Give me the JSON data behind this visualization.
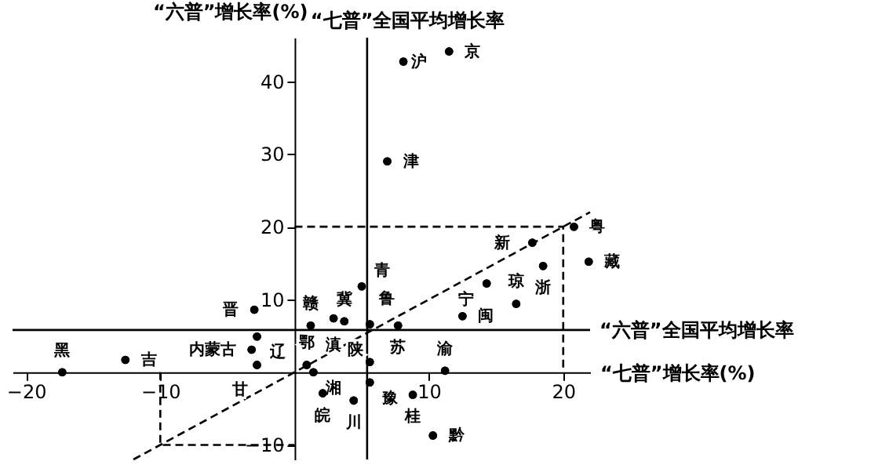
{
  "chart_data": {
    "type": "scatter",
    "xlabel": "“七普”增长率(%)",
    "ylabel": "“六普”增长率(%)",
    "xlim": [
      -21,
      22
    ],
    "ylim": [
      -12,
      46
    ],
    "xticks": [
      -20,
      -10,
      10,
      20
    ],
    "yticks": [
      -10,
      10,
      20,
      30,
      40
    ],
    "grid": false,
    "marker": "circle",
    "series": [
      {
        "color": "#000000",
        "x": [
          11.5,
          8.1,
          6.9,
          3.7,
          -3.0,
          -3.2,
          -2.8,
          -12.6,
          -17.3,
          7.7,
          18.5,
          2.1,
          12.5,
          1.2,
          5.6,
          5.6,
          0.9,
          1.4,
          20.8,
          8.8,
          16.5,
          11.2,
          4.4,
          10.3,
          2.9,
          21.9,
          5.6,
          -2.8,
          5.0,
          14.3,
          17.7
        ],
        "values": [
          44.1,
          42.7,
          29.0,
          7.0,
          8.6,
          3.1,
          4.9,
          1.7,
          0,
          6.4,
          14.6,
          -2.9,
          7.7,
          6.4,
          6.6,
          -1.4,
          1.0,
          0,
          20,
          -3.1,
          9.4,
          0.2,
          -3.9,
          -8.7,
          7.4,
          15.2,
          1.4,
          1.0,
          11.8,
          12.2,
          17.8
        ]
      },
      {
        "type": "line",
        "line_style": "dashed",
        "marker": "none",
        "color": "#000000",
        "x": [
          -12,
          22
        ],
        "values": [
          -12,
          22
        ]
      },
      {
        "type": "line",
        "line_style": "dashed",
        "marker": "none",
        "color": "#000000",
        "x": [
          0,
          20,
          20
        ],
        "values": [
          20,
          20,
          0
        ]
      },
      {
        "type": "line",
        "line_style": "dashed",
        "marker": "none",
        "color": "#000000",
        "x": [
          -10,
          -10,
          0
        ],
        "values": [
          0,
          -10,
          -10
        ]
      }
    ],
    "ref_lines": [
      {
        "axis": "x",
        "value": 5.4,
        "label": "“七普”全国平均增长率",
        "color": "#000000"
      },
      {
        "axis": "y",
        "value": 5.8,
        "label": "“六普”全国平均增长率",
        "color": "#000000"
      }
    ],
    "annotations": [
      {
        "text": "京",
        "x": 11.5,
        "y": 44.1
      },
      {
        "text": "沪",
        "x": 8.1,
        "y": 42.7
      },
      {
        "text": "津",
        "x": 6.9,
        "y": 29.0
      },
      {
        "text": "冀",
        "x": 3.7,
        "y": 7.0
      },
      {
        "text": "晋",
        "x": -3.0,
        "y": 8.6
      },
      {
        "text": "内蒙古",
        "x": -3.2,
        "y": 3.1
      },
      {
        "text": "辽",
        "x": -2.8,
        "y": 4.9
      },
      {
        "text": "吉",
        "x": -12.6,
        "y": 1.7
      },
      {
        "text": "黑",
        "x": -17.3,
        "y": 0
      },
      {
        "text": "苏",
        "x": 7.7,
        "y": 6.4
      },
      {
        "text": "浙",
        "x": 18.5,
        "y": 14.6
      },
      {
        "text": "皖",
        "x": 2.1,
        "y": -2.9
      },
      {
        "text": "闽",
        "x": 12.5,
        "y": 7.7
      },
      {
        "text": "赣",
        "x": 1.2,
        "y": 6.4
      },
      {
        "text": "鲁",
        "x": 5.6,
        "y": 6.6
      },
      {
        "text": "豫",
        "x": 5.6,
        "y": -1.4
      },
      {
        "text": "鄂",
        "x": 0.9,
        "y": 1.0
      },
      {
        "text": "湘",
        "x": 1.4,
        "y": 0
      },
      {
        "text": "粤",
        "x": 20.8,
        "y": 20
      },
      {
        "text": "桂",
        "x": 8.8,
        "y": -3.1
      },
      {
        "text": "琼",
        "x": 16.5,
        "y": 9.4
      },
      {
        "text": "渝",
        "x": 11.2,
        "y": 0.2
      },
      {
        "text": "川",
        "x": 4.4,
        "y": -3.9
      },
      {
        "text": "黔",
        "x": 10.3,
        "y": -8.7
      },
      {
        "text": "滇",
        "x": 2.9,
        "y": 7.4
      },
      {
        "text": "藏",
        "x": 21.9,
        "y": 15.2
      },
      {
        "text": "陕",
        "x": 5.6,
        "y": 1.4
      },
      {
        "text": "甘",
        "x": -2.8,
        "y": 1.0
      },
      {
        "text": "青",
        "x": 5.0,
        "y": 11.8
      },
      {
        "text": "宁",
        "x": 14.3,
        "y": 12.2
      },
      {
        "text": "新",
        "x": 17.7,
        "y": 17.8
      }
    ]
  }
}
